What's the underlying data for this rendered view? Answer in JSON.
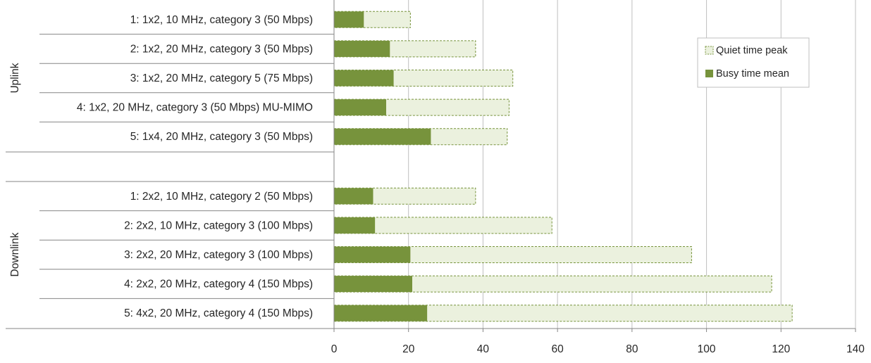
{
  "chart_data": {
    "type": "bar",
    "orientation": "horizontal",
    "stacking": "overlay",
    "title": "",
    "xlabel": "",
    "ylabel": "",
    "xlim": [
      0,
      140
    ],
    "x_ticks": [
      0,
      20,
      40,
      60,
      80,
      100,
      120,
      140
    ],
    "grid": true,
    "legend_position": "top-right",
    "colors": {
      "busy": "#77933c",
      "quiet_fill": "#ebf1de",
      "quiet_stroke": "#77933c",
      "grid": "#bfbfbf",
      "axis": "#868686"
    },
    "groups": [
      {
        "label": "Uplink",
        "categories": [
          "1: 1x2, 10 MHz, category 3 (50 Mbps)",
          "2: 1x2, 20 MHz, category 3 (50 Mbps)",
          "3: 1x2, 20 MHz, category 5 (75 Mbps)",
          "4: 1x2, 20 MHz, category 3 (50 Mbps) MU-MIMO",
          "5: 1x4, 20 MHz, category 3 (50 Mbps)"
        ],
        "quiet_peak": [
          20.5,
          38,
          48,
          47,
          46.5
        ],
        "busy_mean": [
          8,
          15,
          16,
          14,
          26
        ]
      },
      {
        "label": "Downlink",
        "categories": [
          "1: 2x2, 10 MHz, category 2 (50 Mbps)",
          "2: 2x2, 10 MHz, category 3 (100 Mbps)",
          "3: 2x2, 20 MHz, category 3 (100 Mbps)",
          "4: 2x2, 20 MHz, category 4 (150 Mbps)",
          "5: 4x2, 20 MHz, category 4 (150 Mbps)"
        ],
        "quiet_peak": [
          38,
          58.5,
          96,
          117.5,
          123
        ],
        "busy_mean": [
          10.5,
          11,
          20.5,
          21,
          25
        ]
      }
    ],
    "series": [
      {
        "name": "Quiet time peak",
        "key": "quiet_peak"
      },
      {
        "name": "Busy time mean",
        "key": "busy_mean"
      }
    ]
  }
}
